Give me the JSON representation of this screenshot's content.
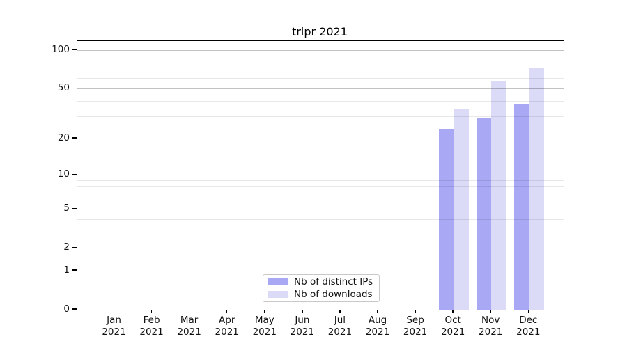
{
  "figure": {
    "title": "tripr 2021"
  },
  "chart_data": {
    "type": "bar",
    "title": "tripr 2021",
    "x_months": [
      "Jan",
      "Feb",
      "Mar",
      "Apr",
      "May",
      "Jun",
      "Jul",
      "Aug",
      "Sep",
      "Oct",
      "Nov",
      "Dec"
    ],
    "x_year": "2021",
    "series": [
      {
        "name": "Nb of distinct IPs",
        "color": "#a8a8f5",
        "values": [
          0,
          0,
          0,
          0,
          0,
          0,
          0,
          0,
          0,
          24,
          29,
          38
        ]
      },
      {
        "name": "Nb of downloads",
        "color": "#dbdbf8",
        "values": [
          0,
          0,
          0,
          0,
          0,
          0,
          0,
          0,
          0,
          35,
          58,
          73
        ]
      }
    ],
    "y_scale": "log10(value+1)",
    "ylim": [
      0,
      118
    ],
    "y_major_ticks": [
      0,
      1,
      2,
      5,
      10,
      20,
      50,
      100
    ],
    "y_minor_gridlines": [
      3,
      4,
      6,
      7,
      8,
      9,
      30,
      40,
      60,
      70,
      80,
      90
    ],
    "grid": true,
    "legend": {
      "position": "lower-center-inside",
      "items": [
        "Nb of distinct IPs",
        "Nb of downloads"
      ]
    }
  }
}
